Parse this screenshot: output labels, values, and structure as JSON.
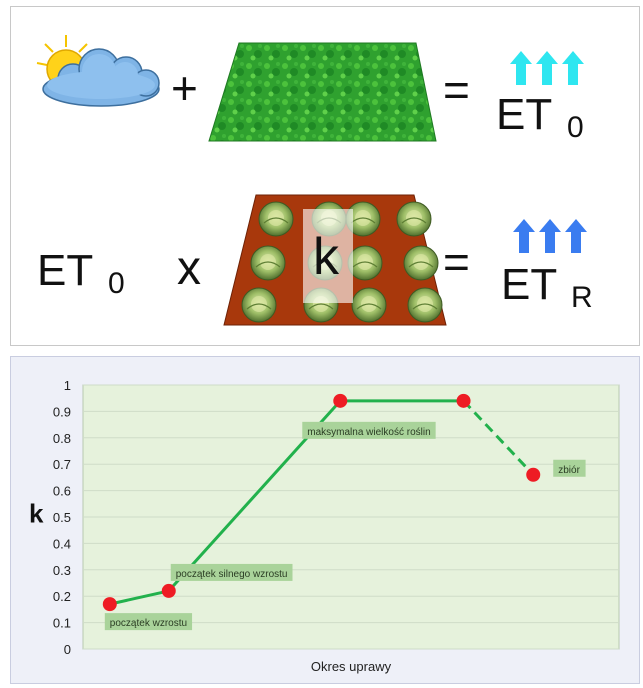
{
  "equation_top": {
    "plus": "+",
    "equals": "=",
    "result_main": "ET",
    "result_sub": "0",
    "arrow_color": "#2ee6f0"
  },
  "equation_bottom": {
    "left_main": "ET",
    "left_sub": "0",
    "times": "x",
    "coef": "k",
    "equals": "=",
    "result_main": "ET",
    "result_sub": "R",
    "arrow_color": "#3a7cf0"
  },
  "chart_data": {
    "type": "line",
    "ylabel": "k",
    "xlabel": "Okres uprawy",
    "ylim": [
      0,
      1
    ],
    "yticks": [
      "0",
      "0.1",
      "0.2",
      "0.3",
      "0.4",
      "0.5",
      "0.6",
      "0.7",
      "0.8",
      "0.9",
      "1"
    ],
    "points": [
      {
        "x": 0.05,
        "y": 0.17,
        "label": "początek wzrostu"
      },
      {
        "x": 0.16,
        "y": 0.22,
        "label": "początek silnego wzrostu"
      },
      {
        "x": 0.48,
        "y": 0.94,
        "label": "maksymalna wielkość roślin"
      },
      {
        "x": 0.71,
        "y": 0.94,
        "label": ""
      },
      {
        "x": 0.84,
        "y": 0.66,
        "label": "zbiór"
      }
    ],
    "line_color": "#22b14c",
    "marker_color": "#ee1c24",
    "plot_bg": "#e6f2dc",
    "label_bg": "#a9d39a"
  }
}
